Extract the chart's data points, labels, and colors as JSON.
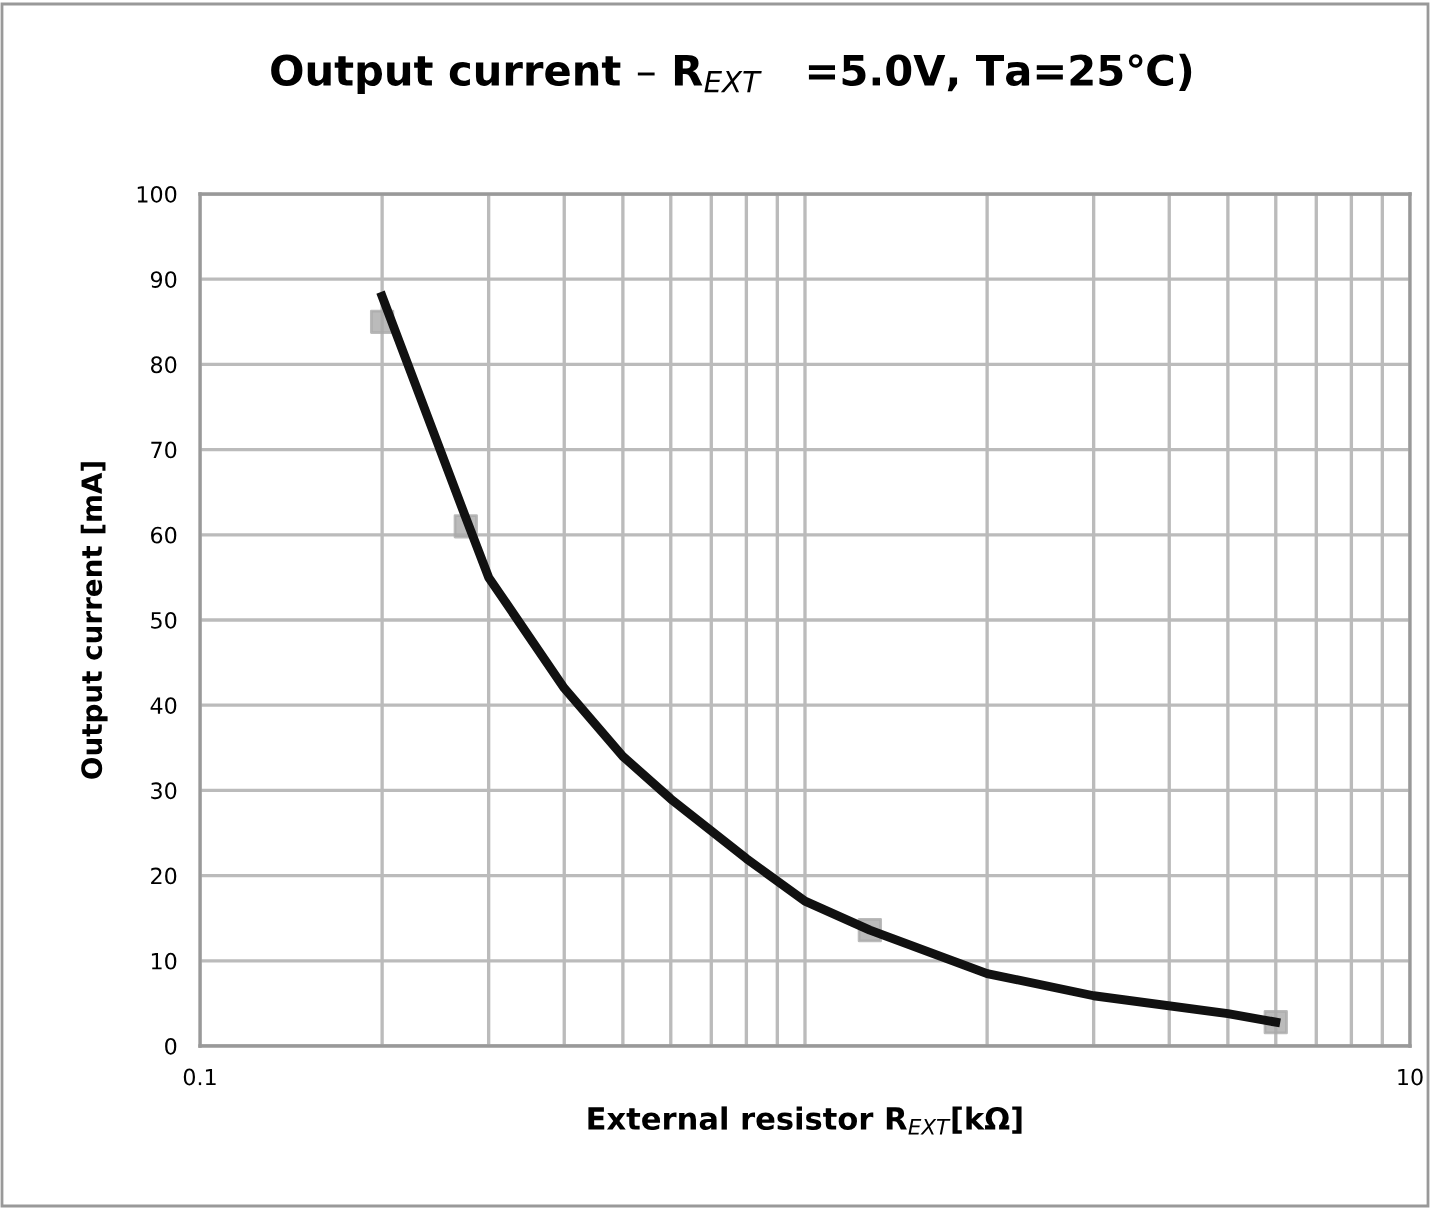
{
  "chart_data": {
    "type": "line",
    "title": "Output current – R$_{EXT}$   =5.0V, Ta=25℃)",
    "xlabel": "External resistor R$_{EXT}$[kΩ]",
    "ylabel": "Output current [mA]",
    "log": "x",
    "xlim": [
      0.1,
      10
    ],
    "xticks": [
      0.1,
      {
        "value": 1,
        "label": null
      },
      10
    ],
    "ylim": [
      0,
      100
    ],
    "yticks": [
      0,
      10,
      20,
      30,
      40,
      50,
      60,
      70,
      80,
      90,
      100
    ],
    "grid": true,
    "series": [
      {
        "color": "#111111",
        "marker": "none",
        "line_style": "solid",
        "x": [
          0.2,
          0.275,
          0.3,
          0.4,
          0.5,
          0.6,
          0.8,
          1.0,
          1.28,
          2.0,
          3.0,
          5.0,
          6.0
        ],
        "values": [
          88,
          62,
          55,
          42,
          34,
          29,
          22,
          17,
          13.6,
          8.5,
          5.9,
          3.8,
          2.8
        ]
      },
      {
        "type": "scatter",
        "color": "#aaaaaa",
        "marker": "square",
        "x": [
          0.2,
          0.275,
          1.28,
          6.0
        ],
        "values": [
          85,
          61,
          13.6,
          2.8
        ]
      }
    ]
  }
}
